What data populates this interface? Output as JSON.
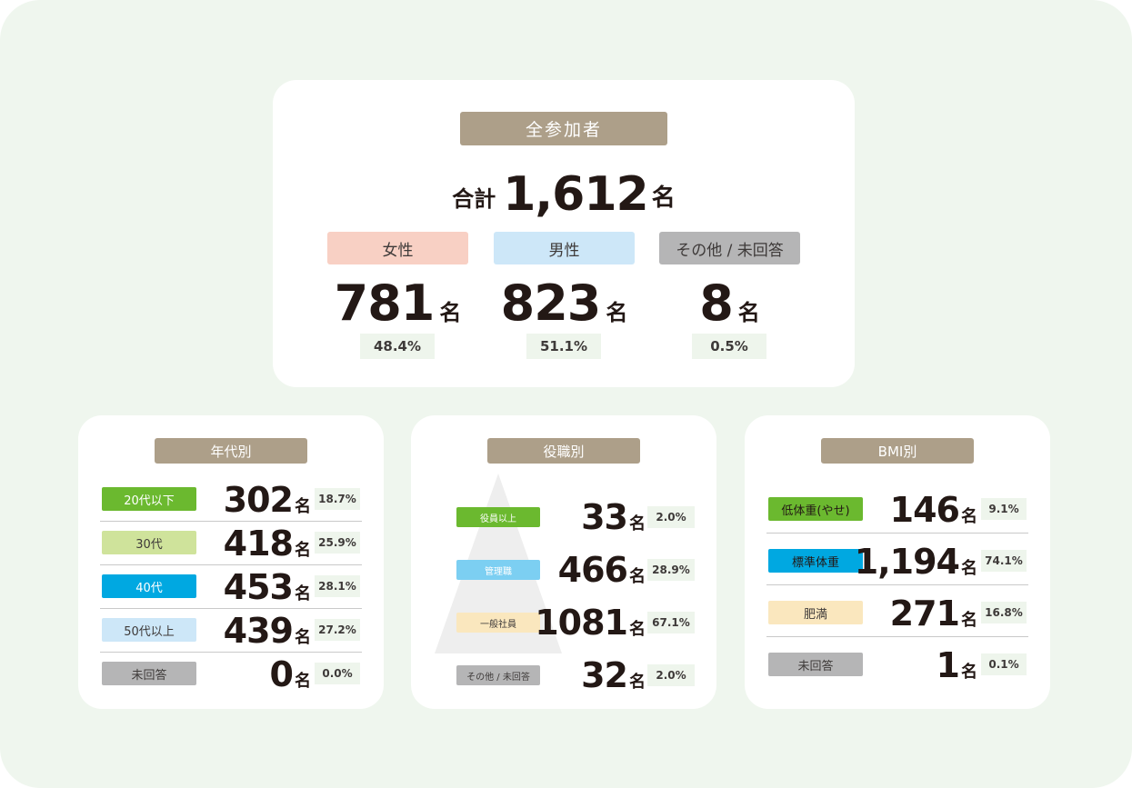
{
  "colors": {
    "background": "#eff6ee",
    "card": "#ffffff",
    "title_pill": "#ad9f89",
    "percent_bg": "#eef5ec",
    "female": "#f8d0c4",
    "male": "#cde7f8",
    "other": "#b5b5b6",
    "green_dark": "#6bb92f",
    "green_light": "#cfe39b",
    "blue": "#00a8e1",
    "blue_light": "#cde7f8",
    "cream": "#fae7be",
    "gray": "#b5b5b6",
    "pyramid": "#eeeeee"
  },
  "overall": {
    "title": "全参加者",
    "total_label": "合計",
    "total_value": "1,612",
    "unit": "名",
    "gender": [
      {
        "label": "女性",
        "value": "781",
        "unit": "名",
        "percent": "48.4%",
        "color": "#f8d0c4"
      },
      {
        "label": "男性",
        "value": "823",
        "unit": "名",
        "percent": "51.1%",
        "color": "#cde7f8"
      },
      {
        "label": "その他 / 未回答",
        "value": "8",
        "unit": "名",
        "percent": "0.5%",
        "color": "#b5b5b6"
      }
    ]
  },
  "age": {
    "title": "年代別",
    "rows": [
      {
        "label": "20代以下",
        "value": "302",
        "unit": "名",
        "percent": "18.7%",
        "color": "#6bb92f",
        "text_color": "#ffffff"
      },
      {
        "label": "30代",
        "value": "418",
        "unit": "名",
        "percent": "25.9%",
        "color": "#cfe39b",
        "text_color": "#3e3a39"
      },
      {
        "label": "40代",
        "value": "453",
        "unit": "名",
        "percent": "28.1%",
        "color": "#00a8e1",
        "text_color": "#ffffff"
      },
      {
        "label": "50代以上",
        "value": "439",
        "unit": "名",
        "percent": "27.2%",
        "color": "#cde7f8",
        "text_color": "#3e3a39"
      },
      {
        "label": "未回答",
        "value": "0",
        "unit": "名",
        "percent": "0.0%",
        "color": "#b5b5b6",
        "text_color": "#3e3a39"
      }
    ]
  },
  "position": {
    "title": "役職別",
    "rows": [
      {
        "label": "役員以上",
        "value": "33",
        "unit": "名",
        "percent": "2.0%",
        "color": "#6bb92f",
        "text_color": "#ffffff"
      },
      {
        "label": "管理職",
        "value": "466",
        "unit": "名",
        "percent": "28.9%",
        "color": "#7ccff2",
        "text_color": "#ffffff"
      },
      {
        "label": "一般社員",
        "value": "1081",
        "unit": "名",
        "percent": "67.1%",
        "color": "#fae7be",
        "text_color": "#3e3a39"
      },
      {
        "label": "その他 / 未回答",
        "value": "32",
        "unit": "名",
        "percent": "2.0%",
        "color": "#b5b5b6",
        "text_color": "#3e3a39"
      }
    ]
  },
  "bmi": {
    "title": "BMI別",
    "rows": [
      {
        "label": "低体重(やせ)",
        "value": "146",
        "unit": "名",
        "percent": "9.1%",
        "color": "#6bb92f",
        "text_color": "#231815"
      },
      {
        "label": "標準体重",
        "value": "1,194",
        "unit": "名",
        "percent": "74.1%",
        "color": "#00a8e1",
        "text_color": "#231815"
      },
      {
        "label": "肥満",
        "value": "271",
        "unit": "名",
        "percent": "16.8%",
        "color": "#fae7be",
        "text_color": "#3e3a39"
      },
      {
        "label": "未回答",
        "value": "1",
        "unit": "名",
        "percent": "0.1%",
        "color": "#b5b5b6",
        "text_color": "#3e3a39"
      }
    ]
  }
}
